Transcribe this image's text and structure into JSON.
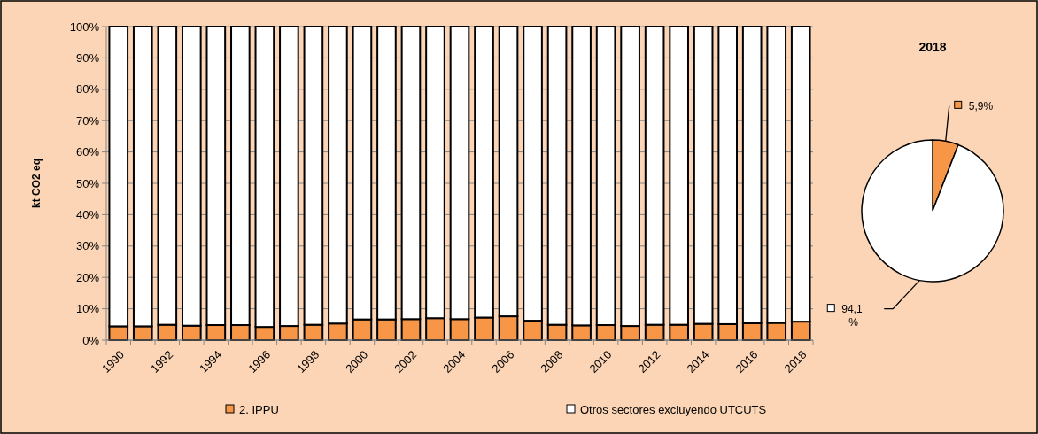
{
  "chart_data": [
    {
      "type": "bar",
      "stacked": true,
      "ylabel": "kt CO2 eq",
      "categories": [
        "1990",
        null,
        "1992",
        null,
        "1994",
        null,
        "1996",
        null,
        "1998",
        null,
        "2000",
        null,
        "2002",
        null,
        "2004",
        null,
        "2006",
        null,
        "2008",
        null,
        "2010",
        null,
        "2012",
        null,
        "2014",
        null,
        "2016",
        null,
        "2018"
      ],
      "series": [
        {
          "name": "2. IPPU",
          "color": "#f79646",
          "values": [
            4.4,
            4.4,
            4.9,
            4.6,
            4.8,
            4.8,
            4.2,
            4.5,
            4.9,
            5.3,
            6.6,
            6.6,
            6.7,
            7.0,
            6.7,
            7.2,
            7.6,
            6.2,
            4.9,
            4.7,
            4.8,
            4.5,
            4.9,
            4.9,
            5.2,
            5.1,
            5.4,
            5.5,
            5.9
          ]
        },
        {
          "name": "Otros sectores excluyendo UTCUTS",
          "color": "#ffffff",
          "values": [
            95.6,
            95.6,
            95.1,
            95.4,
            95.2,
            95.2,
            95.8,
            95.5,
            95.1,
            94.7,
            93.4,
            93.4,
            93.3,
            93.0,
            93.3,
            92.8,
            92.4,
            93.8,
            95.1,
            95.3,
            95.2,
            95.5,
            95.1,
            95.1,
            94.8,
            94.9,
            94.6,
            94.5,
            94.1
          ]
        }
      ],
      "ylim": [
        0,
        100
      ],
      "yticks": [
        {
          "value": 0,
          "label": "0%"
        },
        {
          "value": 10,
          "label": "10%"
        },
        {
          "value": 20,
          "label": "20%"
        },
        {
          "value": 30,
          "label": "30%"
        },
        {
          "value": 40,
          "label": "40%"
        },
        {
          "value": 50,
          "label": "50%"
        },
        {
          "value": 60,
          "label": "60%"
        },
        {
          "value": 70,
          "label": "70%"
        },
        {
          "value": 80,
          "label": "80%"
        },
        {
          "value": 90,
          "label": "90%"
        },
        {
          "value": 100,
          "label": "100%"
        }
      ],
      "grid": "y",
      "legend": "bottom"
    },
    {
      "type": "pie",
      "title": "2018",
      "categories": [
        null,
        null
      ],
      "values": [
        5.9,
        94.1
      ],
      "colors": [
        "#f79646",
        "#ffffff"
      ],
      "value_labels": [
        "5,9%",
        "94,1%"
      ],
      "legend": false
    }
  ]
}
